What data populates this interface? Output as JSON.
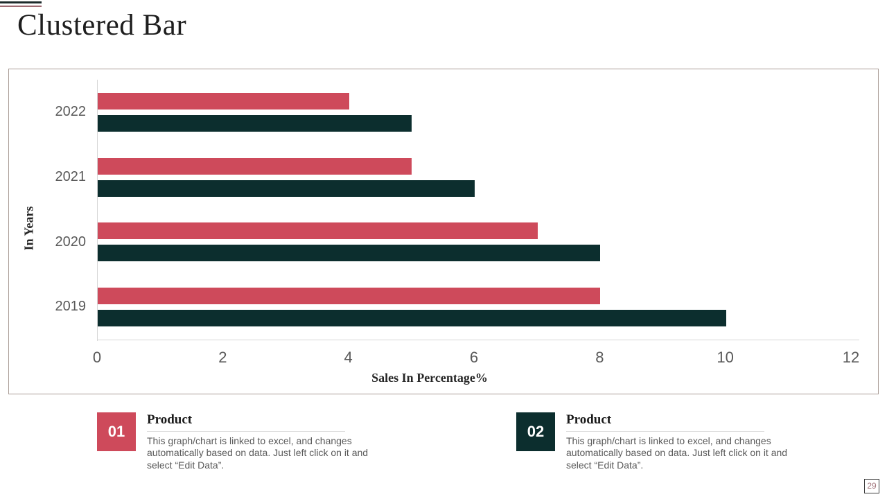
{
  "slide": {
    "title": "Clustered Bar",
    "page_number": "29",
    "accent": {
      "dark_line": "#1c2b2b",
      "red_line": "#9e6b72"
    }
  },
  "chart_data": {
    "type": "bar",
    "orientation": "horizontal",
    "title": "",
    "xlabel": "Sales In Percentage%",
    "ylabel": "In Years",
    "categories": [
      "2022",
      "2021",
      "2020",
      "2019"
    ],
    "series": [
      {
        "name": "Product 01",
        "color": "#ce4a5b",
        "values": [
          4,
          5,
          7,
          8
        ]
      },
      {
        "name": "Product 02",
        "color": "#0c2e2e",
        "values": [
          5,
          6,
          8,
          10
        ]
      }
    ],
    "xlim": [
      0,
      12
    ],
    "xticks": [
      0,
      2,
      4,
      6,
      8,
      10,
      12
    ],
    "grid": false,
    "legend_position": "none"
  },
  "legend_cards": [
    {
      "number": "01",
      "color": "#ce4a5b",
      "title": "Product",
      "description": "This graph/chart is linked to excel, and changes automatically based on data. Just left click on it and select “Edit Data”."
    },
    {
      "number": "02",
      "color": "#0c2e2e",
      "title": "Product",
      "description": "This graph/chart is linked to excel, and changes automatically based on data. Just left click on it and select “Edit Data”."
    }
  ]
}
